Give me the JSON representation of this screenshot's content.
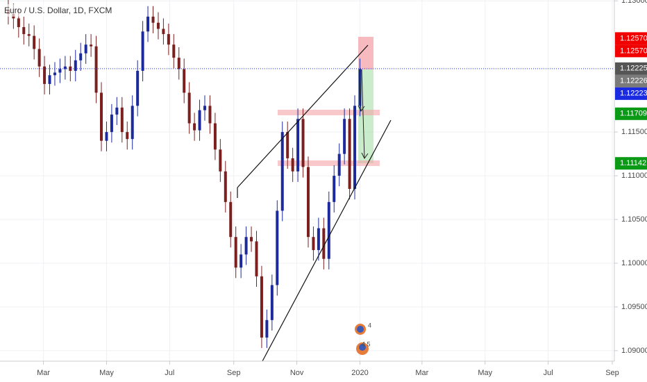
{
  "chart_data": {
    "type": "candlestick",
    "title": "Euro / U.S. Dollar, 1D, FXCM",
    "x": [
      25,
      30,
      35,
      40,
      45,
      50,
      55,
      60,
      65,
      70,
      75,
      80,
      85,
      90,
      95,
      100,
      105,
      110,
      115,
      120,
      125,
      130,
      135,
      140,
      145,
      150,
      155,
      160,
      165,
      170,
      175,
      180,
      185,
      190,
      195,
      200,
      205,
      210,
      215,
      220,
      225,
      230,
      235,
      240,
      245,
      250,
      255,
      260,
      265,
      270,
      275,
      280,
      285,
      290,
      295,
      300,
      305,
      310,
      315,
      320,
      325,
      330,
      335,
      340,
      345,
      350,
      355,
      360,
      365
    ],
    "open": [
      1.129,
      1.1285,
      1.128,
      1.127,
      1.1262,
      1.126,
      1.1245,
      1.1225,
      1.1205,
      1.1215,
      1.1218,
      1.1222,
      1.1225,
      1.122,
      1.1232,
      1.124,
      1.125,
      1.1248,
      1.1195,
      1.114,
      1.115,
      1.117,
      1.1178,
      1.115,
      1.1142,
      1.118,
      1.122,
      1.1265,
      1.1282,
      1.1275,
      1.1268,
      1.1262,
      1.125,
      1.1235,
      1.1222,
      1.1195,
      1.116,
      1.1152,
      1.1175,
      1.118,
      1.116,
      1.113,
      1.1105,
      1.107,
      1.103,
      1.0995,
      1.101,
      1.103,
      1.1025,
      1.0985,
      1.0915,
      1.0935,
      1.0975,
      1.106,
      1.115,
      1.112,
      1.1105,
      1.1165,
      1.111,
      1.103,
      1.1015,
      1.104,
      1.1005,
      1.107,
      1.11,
      1.1125,
      1.1165,
      1.1085,
      1.118
    ],
    "high": [
      1.1302,
      1.1297,
      1.1292,
      1.1282,
      1.1274,
      1.1272,
      1.1257,
      1.1237,
      1.1227,
      1.123,
      1.1234,
      1.1237,
      1.1237,
      1.1244,
      1.1252,
      1.1262,
      1.1262,
      1.126,
      1.1207,
      1.1162,
      1.1182,
      1.119,
      1.119,
      1.1162,
      1.1192,
      1.1232,
      1.1277,
      1.1294,
      1.1294,
      1.1287,
      1.128,
      1.1274,
      1.1262,
      1.1247,
      1.1234,
      1.1207,
      1.1172,
      1.1187,
      1.1192,
      1.1192,
      1.1172,
      1.1142,
      1.1117,
      1.1082,
      1.1042,
      1.1022,
      1.1042,
      1.1042,
      1.1037,
      1.0997,
      1.0947,
      1.0987,
      1.1072,
      1.1162,
      1.1162,
      1.1132,
      1.1177,
      1.1177,
      1.1122,
      1.1042,
      1.1052,
      1.1052,
      1.1082,
      1.1112,
      1.1137,
      1.1177,
      1.1177,
      1.1192,
      1.1234
    ],
    "low": [
      1.1273,
      1.1268,
      1.1258,
      1.125,
      1.1248,
      1.1233,
      1.1213,
      1.1193,
      1.1193,
      1.1203,
      1.1206,
      1.121,
      1.1208,
      1.1208,
      1.122,
      1.1228,
      1.1236,
      1.1183,
      1.1128,
      1.1128,
      1.1138,
      1.1158,
      1.1138,
      1.113,
      1.113,
      1.1168,
      1.1208,
      1.1253,
      1.1263,
      1.1256,
      1.125,
      1.1238,
      1.1223,
      1.121,
      1.1183,
      1.1148,
      1.114,
      1.114,
      1.1163,
      1.1148,
      1.1118,
      1.1093,
      1.1058,
      1.1018,
      1.0983,
      1.0983,
      1.0998,
      1.1013,
      1.0973,
      1.0903,
      1.0903,
      1.0923,
      1.0963,
      1.1048,
      1.1108,
      1.1093,
      1.1093,
      1.1098,
      1.1018,
      1.1003,
      1.1003,
      1.0993,
      1.0993,
      1.1058,
      1.1088,
      1.1113,
      1.1073,
      1.1073,
      1.1168
    ],
    "close": [
      1.1285,
      1.128,
      1.127,
      1.1262,
      1.126,
      1.1245,
      1.1225,
      1.1205,
      1.1215,
      1.1218,
      1.1222,
      1.1225,
      1.122,
      1.1232,
      1.124,
      1.125,
      1.1248,
      1.1195,
      1.114,
      1.115,
      1.117,
      1.1178,
      1.115,
      1.1142,
      1.118,
      1.122,
      1.1265,
      1.1282,
      1.1275,
      1.1268,
      1.1262,
      1.125,
      1.1235,
      1.1222,
      1.1195,
      1.116,
      1.1152,
      1.1175,
      1.118,
      1.116,
      1.113,
      1.1105,
      1.107,
      1.103,
      1.0995,
      1.101,
      1.103,
      1.1025,
      1.0985,
      1.0915,
      1.0935,
      1.0975,
      1.106,
      1.115,
      1.112,
      1.1105,
      1.1165,
      1.111,
      1.103,
      1.1015,
      1.104,
      1.1005,
      1.107,
      1.11,
      1.1125,
      1.1165,
      1.1085,
      1.118,
      1.1222
    ],
    "up_color": "#1c2a9c",
    "down_color": "#7b1f1f",
    "xlim": [
      17,
      611
    ],
    "xticks": [
      {
        "value": 59,
        "label": "Mar"
      },
      {
        "value": 120,
        "label": "May"
      },
      {
        "value": 181,
        "label": "Jul"
      },
      {
        "value": 243,
        "label": "Sep"
      },
      {
        "value": 304,
        "label": "Nov"
      },
      {
        "value": 365,
        "label": "2020"
      },
      {
        "value": 425,
        "label": "Mar"
      },
      {
        "value": 486,
        "label": "May"
      },
      {
        "value": 547,
        "label": "Jul"
      },
      {
        "value": 609,
        "label": "Sep"
      }
    ],
    "ylim": [
      1.0888,
      1.1301
    ],
    "yticks": [
      {
        "value": 1.13,
        "label": "1.13000"
      },
      {
        "value": 1.115,
        "label": "1.11500"
      },
      {
        "value": 1.11,
        "label": "1.11000"
      },
      {
        "value": 1.105,
        "label": "1.10500"
      },
      {
        "value": 1.1,
        "label": "1.10000"
      },
      {
        "value": 1.095,
        "label": "1.09500"
      },
      {
        "value": 1.09,
        "label": "1.09000"
      }
    ],
    "grid": true,
    "price_labels": [
      {
        "value": 1.1257,
        "label": "1.12570",
        "color": "#f20000"
      },
      {
        "value": 1.1257,
        "label": "1.12570",
        "color": "#f20000"
      },
      {
        "value": 1.12225,
        "label": "1.12225",
        "color": "#555555",
        "line": true
      },
      {
        "value": 1.12226,
        "label": "1.12226",
        "color": "#7a7a7a"
      },
      {
        "value": 1.12223,
        "label": "1.12223",
        "color": "#1a2ae0"
      },
      {
        "value": 1.11709,
        "label": "1.11709",
        "color": "#0a9a16"
      },
      {
        "value": 1.11142,
        "label": "1.11142",
        "color": "#0a9a16"
      }
    ],
    "event_labels": [
      "4",
      "4 5"
    ]
  }
}
